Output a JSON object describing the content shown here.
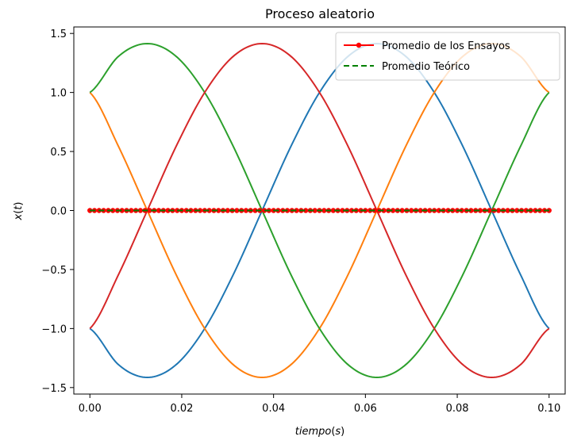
{
  "chart_data": {
    "type": "line",
    "title": "Proceso aleatorio",
    "xlabel": "tiempo(s)",
    "ylabel": "x(t)",
    "xlim": [
      -0.0035,
      0.1035
    ],
    "ylim": [
      -1.555,
      1.555
    ],
    "xticks": [
      0.0,
      0.02,
      0.04,
      0.06,
      0.08,
      0.1
    ],
    "xtick_labels": [
      "0.00",
      "0.02",
      "0.04",
      "0.06",
      "0.08",
      "0.10"
    ],
    "yticks": [
      -1.5,
      -1.0,
      -0.5,
      0.0,
      0.5,
      1.0,
      1.5
    ],
    "ytick_labels": [
      "−1.5",
      "−1.0",
      "−0.5",
      "0.0",
      "0.5",
      "1.0",
      "1.5"
    ],
    "grid": false,
    "legend_position": "top-right",
    "series": [
      {
        "color": "#1f77b4",
        "style": "solid",
        "x": [
          0.0,
          0.00625,
          0.0125,
          0.01875,
          0.025,
          0.03125,
          0.0375,
          0.04375,
          0.05,
          0.05625,
          0.0625,
          0.06875,
          0.075,
          0.08125,
          0.0875,
          0.09375,
          0.1
        ],
        "y": [
          -1.0,
          -1.307,
          -1.414,
          -1.307,
          -1.0,
          -0.541,
          0.0,
          0.541,
          1.0,
          1.307,
          1.414,
          1.307,
          1.0,
          0.541,
          0.0,
          -0.541,
          -1.0
        ]
      },
      {
        "color": "#ff7f0e",
        "style": "solid",
        "x": [
          0.0,
          0.00625,
          0.0125,
          0.01875,
          0.025,
          0.03125,
          0.0375,
          0.04375,
          0.05,
          0.05625,
          0.0625,
          0.06875,
          0.075,
          0.08125,
          0.0875,
          0.09375,
          0.1
        ],
        "y": [
          1.0,
          0.541,
          0.0,
          -0.541,
          -1.0,
          -1.307,
          -1.414,
          -1.307,
          -1.0,
          -0.541,
          0.0,
          0.541,
          1.0,
          1.307,
          1.414,
          1.307,
          1.0
        ]
      },
      {
        "color": "#2ca02c",
        "style": "solid",
        "x": [
          0.0,
          0.00625,
          0.0125,
          0.01875,
          0.025,
          0.03125,
          0.0375,
          0.04375,
          0.05,
          0.05625,
          0.0625,
          0.06875,
          0.075,
          0.08125,
          0.0875,
          0.09375,
          0.1
        ],
        "y": [
          1.0,
          1.307,
          1.414,
          1.307,
          1.0,
          0.541,
          0.0,
          -0.541,
          -1.0,
          -1.307,
          -1.414,
          -1.307,
          -1.0,
          -0.541,
          0.0,
          0.541,
          1.0
        ]
      },
      {
        "color": "#d62728",
        "style": "solid",
        "x": [
          0.0,
          0.00625,
          0.0125,
          0.01875,
          0.025,
          0.03125,
          0.0375,
          0.04375,
          0.05,
          0.05625,
          0.0625,
          0.06875,
          0.075,
          0.08125,
          0.0875,
          0.09375,
          0.1
        ],
        "y": [
          -1.0,
          -0.541,
          0.0,
          0.541,
          1.0,
          1.307,
          1.414,
          1.307,
          1.0,
          0.541,
          0.0,
          -0.541,
          -1.0,
          -1.307,
          -1.414,
          -1.307,
          -1.0
        ]
      },
      {
        "name": "Promedio de los Ensayos",
        "color": "#ff0000",
        "style": "solid",
        "marker": "circle",
        "x_range": [
          0.0,
          0.1
        ],
        "points": 101,
        "y_constant": 0.0
      },
      {
        "name": "Promedio Teórico",
        "color": "#008000",
        "style": "dashed",
        "x_range": [
          0.0,
          0.1
        ],
        "y_constant": 0.0
      }
    ]
  }
}
